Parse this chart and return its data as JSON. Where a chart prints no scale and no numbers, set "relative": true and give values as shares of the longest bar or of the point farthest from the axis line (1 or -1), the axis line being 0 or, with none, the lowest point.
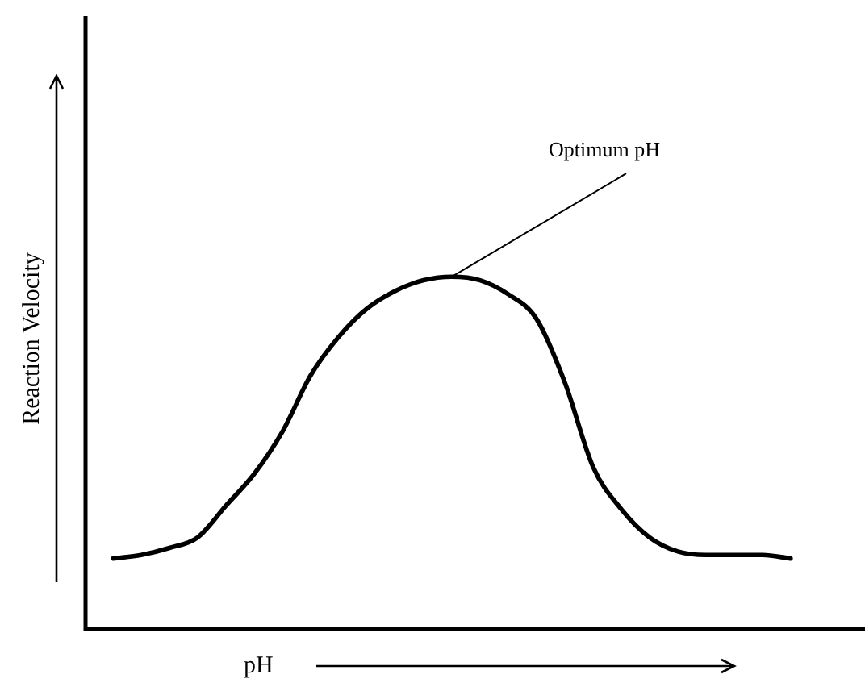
{
  "chart_data": {
    "type": "line",
    "relative": true,
    "xlabel": "pH",
    "ylabel": "Reaction Velocity",
    "categories": [
      null,
      null,
      null,
      null,
      null,
      null,
      null,
      null,
      null,
      null,
      null,
      null,
      null,
      null,
      null,
      null,
      null,
      null,
      null,
      null,
      null,
      null,
      null,
      null,
      null
    ],
    "series": [
      {
        "color": "#000000",
        "values": [
          0.2,
          0.21,
          0.23,
          0.26,
          0.35,
          0.44,
          0.56,
          0.72,
          0.83,
          0.91,
          0.96,
          0.99,
          1,
          0.99,
          0.95,
          0.88,
          0.7,
          0.46,
          0.34,
          0.26,
          0.22,
          0.21,
          0.21,
          0.21,
          0.2
        ]
      }
    ],
    "annotations": [
      "Optimum pH"
    ],
    "marker": "none",
    "legend": false,
    "grid": false
  }
}
